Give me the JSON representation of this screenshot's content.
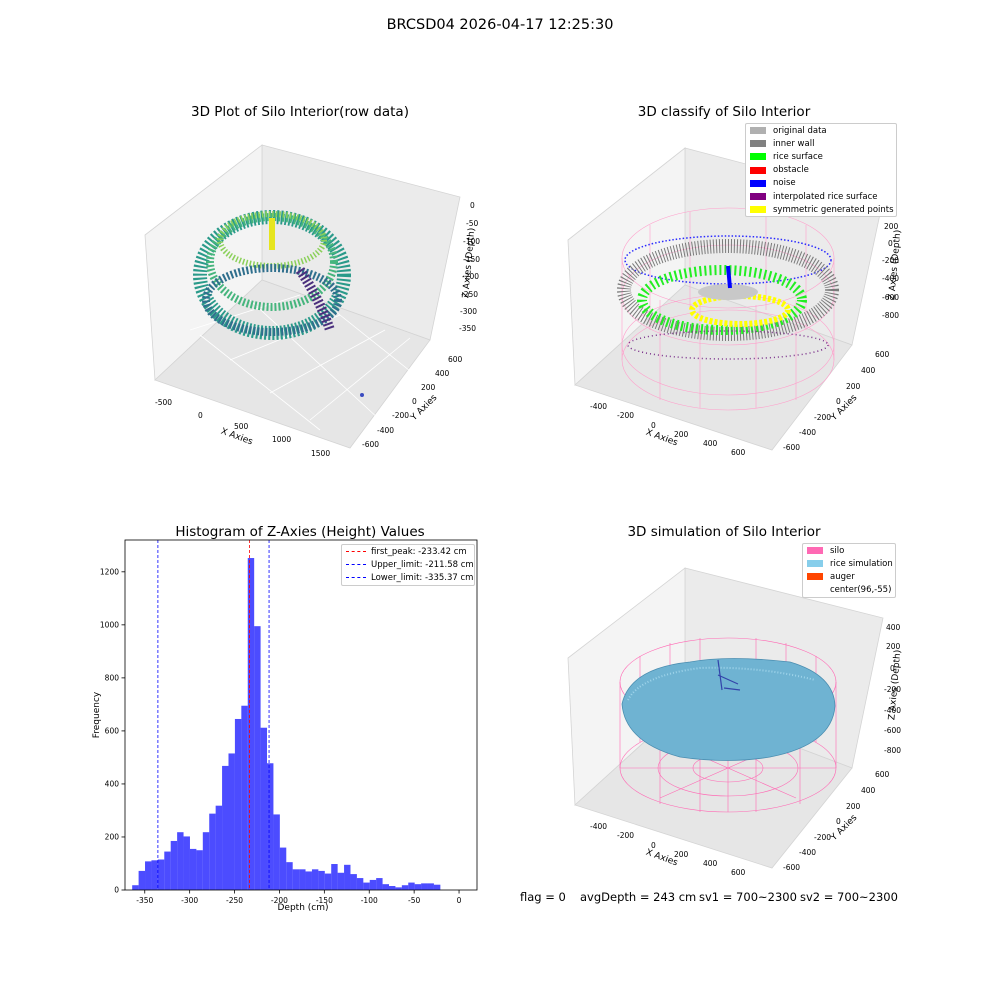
{
  "figure_title": "BRCSD04 2026-04-17 12:25:30",
  "panels": {
    "raw": {
      "title": "3D Plot of Silo Interior(row data)",
      "xlabel": "X Axies",
      "ylabel": "Y Axies",
      "zlabel": "Z Axies (Depth)",
      "xticks": [
        "-500",
        "0",
        "500",
        "1000",
        "1500"
      ],
      "yticks": [
        "600",
        "400",
        "200",
        "0",
        "-200",
        "-400",
        "-600"
      ],
      "zticks": [
        "0",
        "-50",
        "-100",
        "-150",
        "-200",
        "-250",
        "-300",
        "-350"
      ]
    },
    "classify": {
      "title": "3D classify of Silo Interior",
      "xlabel": "X Axies",
      "ylabel": "Y Axies",
      "zlabel": "Z Axies (Depth)",
      "xticks": [
        "-400",
        "-200",
        "0",
        "200",
        "400",
        "600"
      ],
      "yticks": [
        "600",
        "400",
        "200",
        "0",
        "-200",
        "-400",
        "-600"
      ],
      "zticks": [
        "200",
        "0",
        "-200",
        "-400",
        "-600",
        "-800"
      ],
      "legend": [
        {
          "label": "original data",
          "color": "#b0b0b0"
        },
        {
          "label": "inner wall",
          "color": "#808080"
        },
        {
          "label": "rice surface",
          "color": "#00ff00"
        },
        {
          "label": "obstacle",
          "color": "#ff0000"
        },
        {
          "label": "noise",
          "color": "#0000ff"
        },
        {
          "label": "interpolated rice surface",
          "color": "#800080"
        },
        {
          "label": "symmetric generated points",
          "color": "#ffff00"
        }
      ]
    },
    "simulation": {
      "title": "3D simulation of Silo Interior",
      "xlabel": "X Axies",
      "ylabel": "Y Axies",
      "zlabel": "Z Axies (Depth)",
      "xticks": [
        "-400",
        "-200",
        "0",
        "200",
        "400",
        "600"
      ],
      "yticks": [
        "600",
        "400",
        "200",
        "0",
        "-200",
        "-400",
        "-600"
      ],
      "zticks": [
        "400",
        "200",
        "0",
        "-200",
        "-400",
        "-600",
        "-800"
      ],
      "legend": [
        {
          "label": "silo",
          "color": "#ff69b4"
        },
        {
          "label": "rice simulation",
          "color": "#87ceeb"
        },
        {
          "label": "auger",
          "color": "#ff4500"
        },
        {
          "label": "center(96,-55)",
          "color": "#ffffff"
        }
      ]
    }
  },
  "footer": {
    "flag": "flag = 0",
    "avg_depth": "avgDepth = 243 cm",
    "sv1": "sv1 = 700~2300",
    "sv2": "sv2 = 700~2300"
  },
  "chart_data": {
    "type": "bar",
    "title": "Histogram of Z-Axies (Height) Values",
    "xlabel": "Depth (cm)",
    "ylabel": "Frequency",
    "xlim": [
      -372,
      20
    ],
    "ylim": [
      0,
      1320
    ],
    "xticks": [
      -350,
      -300,
      -250,
      -200,
      -150,
      -100,
      -50,
      0
    ],
    "yticks": [
      0,
      200,
      400,
      600,
      800,
      1000,
      1200
    ],
    "bar_color": "#0000ff",
    "bin_width": 7.15,
    "bin_start": -364,
    "values": [
      18,
      72,
      108,
      112,
      115,
      145,
      185,
      218,
      202,
      155,
      150,
      218,
      288,
      318,
      468,
      515,
      645,
      695,
      1252,
      995,
      612,
      478,
      285,
      160,
      105,
      78,
      78,
      70,
      78,
      72,
      62,
      98,
      65,
      95,
      60,
      45,
      28,
      38,
      45,
      22,
      15,
      10,
      18,
      28,
      22,
      25,
      25,
      20
    ],
    "lines": [
      {
        "label": "first_peak: -233.42 cm",
        "x": -233.42,
        "color": "#ff0000"
      },
      {
        "label": "Upper_limit: -211.58 cm",
        "x": -211.58,
        "color": "#0000ff"
      },
      {
        "label": "Lower_limit: -335.37 cm",
        "x": -335.37,
        "color": "#0000ff"
      }
    ],
    "legend_position": "upper right"
  }
}
